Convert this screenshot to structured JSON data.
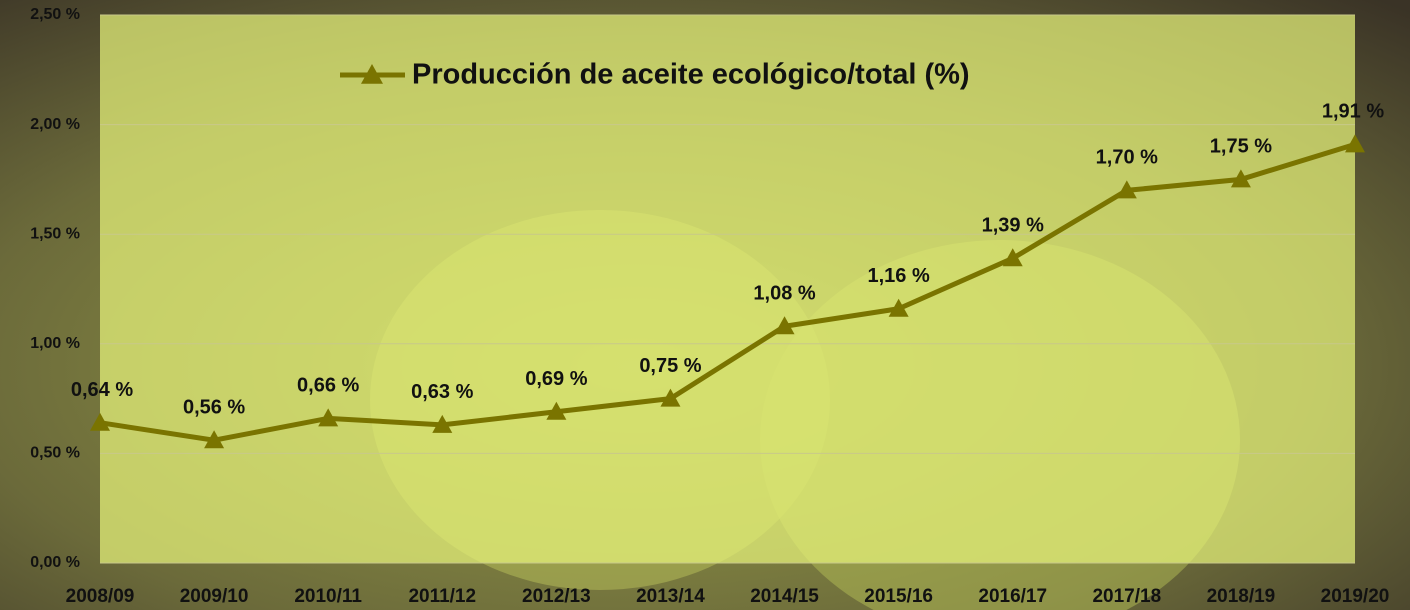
{
  "chart_data": {
    "type": "line",
    "categories": [
      "2008/09",
      "2009/10",
      "2010/11",
      "2011/12",
      "2012/13",
      "2013/14",
      "2014/15",
      "2015/16",
      "2016/17",
      "2017/18",
      "2018/19",
      "2019/20"
    ],
    "series": [
      {
        "name": "Producción de aceite ecológico/total (%)",
        "color": "#7a7400",
        "values": [
          0.64,
          0.56,
          0.66,
          0.63,
          0.69,
          0.75,
          1.08,
          1.16,
          1.39,
          1.7,
          1.75,
          1.91
        ],
        "value_labels": [
          "0,64 %",
          "0,56 %",
          "0,66 %",
          "0,63 %",
          "0,69 %",
          "0,75 %",
          "1,08 %",
          "1,16 %",
          "1,39 %",
          "1,70 %",
          "1,75 %",
          "1,91 %"
        ]
      }
    ],
    "ylim": [
      0,
      2.5
    ],
    "yticks": [
      {
        "value": 0,
        "label": "0,00 %"
      },
      {
        "value": 0.5,
        "label": "0,50 %"
      },
      {
        "value": 1,
        "label": "1,00 %"
      },
      {
        "value": 1.5,
        "label": "1,50 %"
      },
      {
        "value": 2,
        "label": "2,00 %"
      },
      {
        "value": 2.5,
        "label": "2,50 %"
      }
    ],
    "grid": true,
    "legend": "top"
  }
}
